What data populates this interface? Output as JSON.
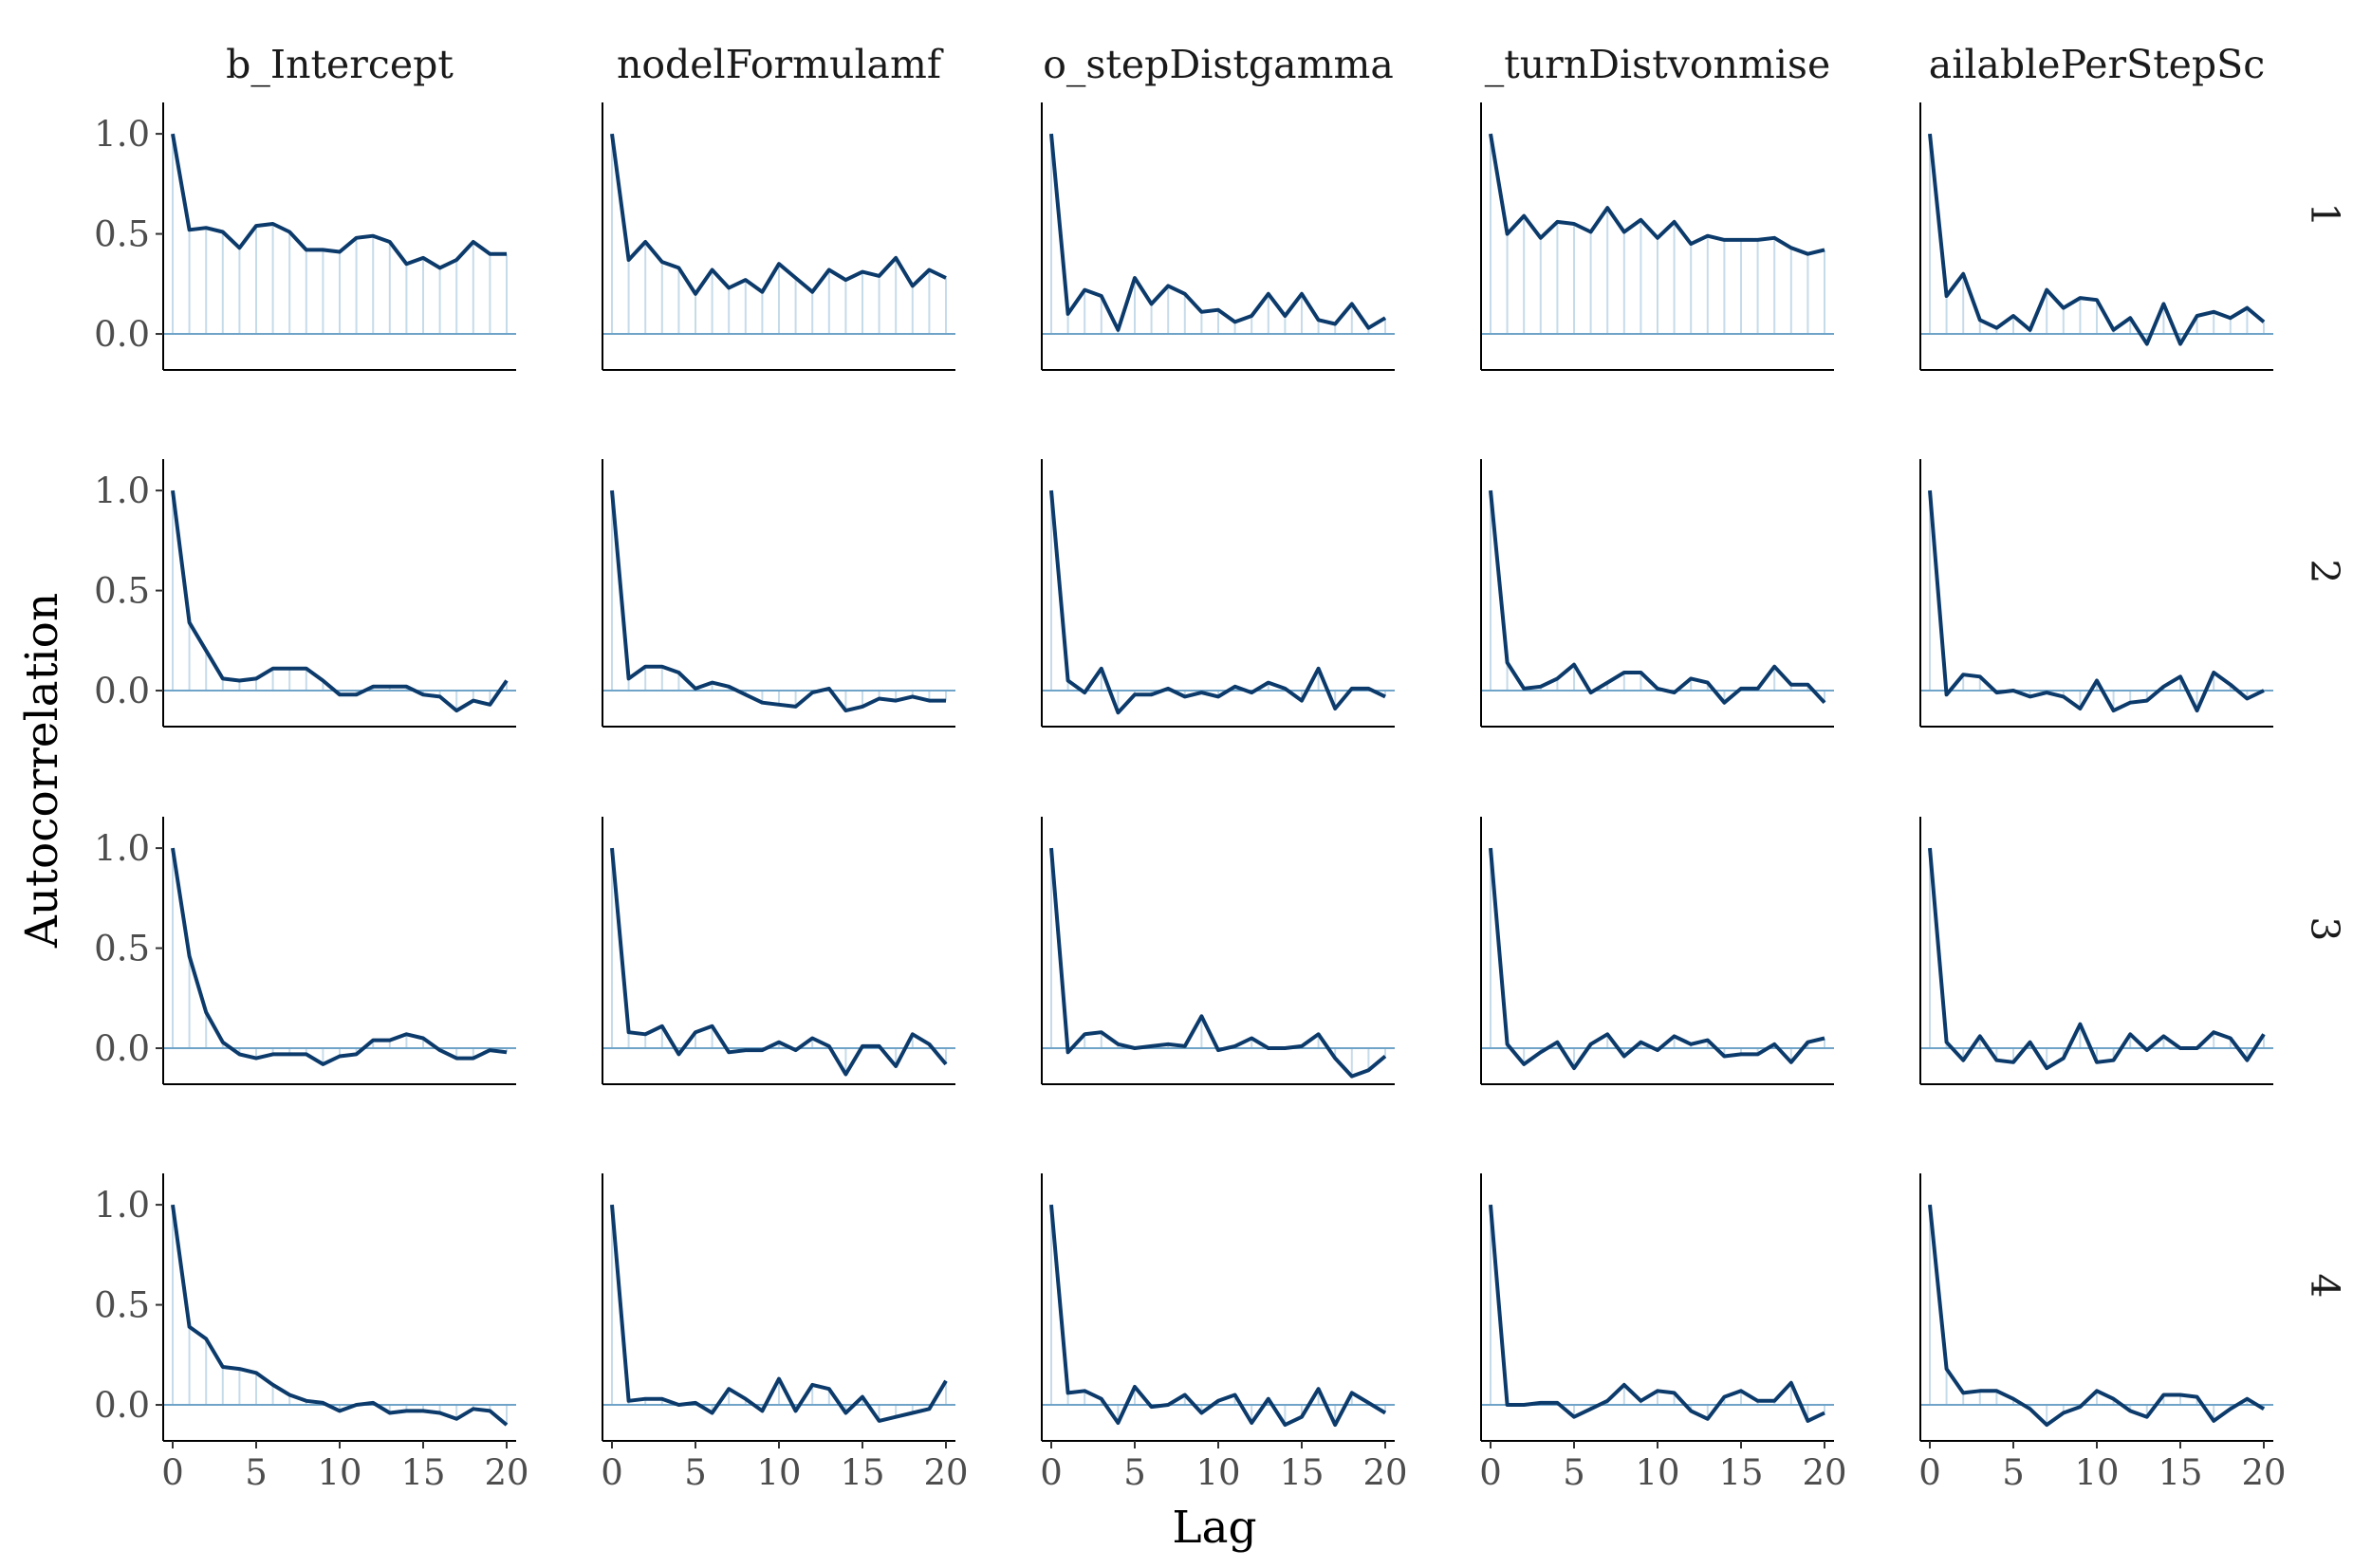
{
  "chart_data": {
    "type": "line",
    "xlabel": "Lag",
    "ylabel": "Autocorrelation",
    "column_labels": [
      "b_Intercept",
      "nodelFormulamf",
      "o_stepDistgamma",
      "_turnDistvonmise",
      "ailablePerStepSc"
    ],
    "row_labels": [
      "1",
      "2",
      "3",
      "4"
    ],
    "xlim": [
      0,
      20
    ],
    "ylim": [
      -0.18,
      1.1
    ],
    "x_ticks": [
      0,
      5,
      10,
      15,
      20
    ],
    "y_ticks": [
      0.0,
      0.5,
      1.0
    ],
    "y_tick_labels": [
      "0.0",
      "0.5",
      "1.0"
    ],
    "x": [
      0,
      1,
      2,
      3,
      4,
      5,
      6,
      7,
      8,
      9,
      10,
      11,
      12,
      13,
      14,
      15,
      16,
      17,
      18,
      19,
      20
    ],
    "colors": {
      "line": "#0b3a6b",
      "zero_line": "#6fa3c7",
      "stems": "#c6dbea",
      "axis": "#000000"
    },
    "panels": [
      [
        [
          1.0,
          0.52,
          0.53,
          0.51,
          0.43,
          0.54,
          0.55,
          0.51,
          0.42,
          0.42,
          0.41,
          0.48,
          0.49,
          0.46,
          0.35,
          0.38,
          0.33,
          0.37,
          0.46,
          0.4,
          0.4
        ],
        [
          1.0,
          0.37,
          0.46,
          0.36,
          0.33,
          0.2,
          0.32,
          0.23,
          0.27,
          0.21,
          0.35,
          0.28,
          0.21,
          0.32,
          0.27,
          0.31,
          0.29,
          0.38,
          0.24,
          0.32,
          0.28
        ],
        [
          1.0,
          0.1,
          0.22,
          0.19,
          0.02,
          0.28,
          0.15,
          0.24,
          0.2,
          0.11,
          0.12,
          0.06,
          0.09,
          0.2,
          0.09,
          0.2,
          0.07,
          0.05,
          0.15,
          0.03,
          0.08
        ],
        [
          1.0,
          0.5,
          0.59,
          0.48,
          0.56,
          0.55,
          0.51,
          0.63,
          0.51,
          0.57,
          0.48,
          0.56,
          0.45,
          0.49,
          0.47,
          0.47,
          0.47,
          0.48,
          0.43,
          0.4,
          0.42
        ],
        [
          1.0,
          0.19,
          0.3,
          0.07,
          0.03,
          0.09,
          0.02,
          0.22,
          0.13,
          0.18,
          0.17,
          0.02,
          0.08,
          -0.05,
          0.15,
          -0.05,
          0.09,
          0.11,
          0.08,
          0.13,
          0.06
        ]
      ],
      [
        [
          1.0,
          0.34,
          0.2,
          0.06,
          0.05,
          0.06,
          0.11,
          0.11,
          0.11,
          0.05,
          -0.02,
          -0.02,
          0.02,
          0.02,
          0.02,
          -0.02,
          -0.03,
          -0.1,
          -0.05,
          -0.07,
          0.05
        ],
        [
          1.0,
          0.06,
          0.12,
          0.12,
          0.09,
          0.01,
          0.04,
          0.02,
          -0.02,
          -0.06,
          -0.07,
          -0.08,
          -0.01,
          0.01,
          -0.1,
          -0.08,
          -0.04,
          -0.05,
          -0.03,
          -0.05,
          -0.05
        ],
        [
          1.0,
          0.05,
          -0.01,
          0.11,
          -0.11,
          -0.02,
          -0.02,
          0.01,
          -0.03,
          -0.01,
          -0.03,
          0.02,
          -0.01,
          0.04,
          0.01,
          -0.05,
          0.11,
          -0.09,
          0.01,
          0.01,
          -0.03
        ],
        [
          1.0,
          0.14,
          0.01,
          0.02,
          0.06,
          0.13,
          -0.01,
          0.04,
          0.09,
          0.09,
          0.01,
          -0.01,
          0.06,
          0.04,
          -0.06,
          0.01,
          0.01,
          0.12,
          0.03,
          0.03,
          -0.06
        ],
        [
          1.0,
          -0.02,
          0.08,
          0.07,
          -0.01,
          0.0,
          -0.03,
          -0.01,
          -0.03,
          -0.09,
          0.05,
          -0.1,
          -0.06,
          -0.05,
          0.02,
          0.07,
          -0.1,
          0.09,
          0.03,
          -0.04,
          0.0
        ]
      ],
      [
        [
          1.0,
          0.46,
          0.18,
          0.03,
          -0.03,
          -0.05,
          -0.03,
          -0.03,
          -0.03,
          -0.08,
          -0.04,
          -0.03,
          0.04,
          0.04,
          0.07,
          0.05,
          -0.01,
          -0.05,
          -0.05,
          -0.01,
          -0.02
        ],
        [
          1.0,
          0.08,
          0.07,
          0.11,
          -0.03,
          0.08,
          0.11,
          -0.02,
          -0.01,
          -0.01,
          0.03,
          -0.01,
          0.05,
          0.01,
          -0.13,
          0.01,
          0.01,
          -0.09,
          0.07,
          0.02,
          -0.08
        ],
        [
          1.0,
          -0.02,
          0.07,
          0.08,
          0.02,
          0.0,
          0.01,
          0.02,
          0.01,
          0.16,
          -0.01,
          0.01,
          0.05,
          0.0,
          0.0,
          0.01,
          0.07,
          -0.05,
          -0.14,
          -0.11,
          -0.04
        ],
        [
          1.0,
          0.02,
          -0.08,
          -0.02,
          0.03,
          -0.1,
          0.02,
          0.07,
          -0.04,
          0.03,
          -0.01,
          0.06,
          0.02,
          0.04,
          -0.04,
          -0.03,
          -0.03,
          0.02,
          -0.07,
          0.03,
          0.05
        ],
        [
          1.0,
          0.03,
          -0.06,
          0.06,
          -0.06,
          -0.07,
          0.03,
          -0.1,
          -0.05,
          0.12,
          -0.07,
          -0.06,
          0.07,
          -0.01,
          0.06,
          0.0,
          0.0,
          0.08,
          0.05,
          -0.06,
          0.07
        ]
      ],
      [
        [
          1.0,
          0.39,
          0.33,
          0.19,
          0.18,
          0.16,
          0.1,
          0.05,
          0.02,
          0.01,
          -0.03,
          0.0,
          0.01,
          -0.04,
          -0.03,
          -0.03,
          -0.04,
          -0.07,
          -0.02,
          -0.03,
          -0.1
        ],
        [
          1.0,
          0.02,
          0.03,
          0.03,
          0.0,
          0.01,
          -0.04,
          0.08,
          0.03,
          -0.03,
          0.13,
          -0.03,
          0.1,
          0.08,
          -0.04,
          0.04,
          -0.08,
          -0.06,
          -0.04,
          -0.02,
          0.12
        ],
        [
          1.0,
          0.06,
          0.07,
          0.03,
          -0.09,
          0.09,
          -0.01,
          0.0,
          0.05,
          -0.04,
          0.02,
          0.05,
          -0.09,
          0.03,
          -0.1,
          -0.06,
          0.08,
          -0.1,
          0.06,
          0.01,
          -0.04
        ],
        [
          1.0,
          0.0,
          0.0,
          0.01,
          0.01,
          -0.06,
          -0.02,
          0.02,
          0.1,
          0.02,
          0.07,
          0.06,
          -0.03,
          -0.07,
          0.04,
          0.07,
          0.02,
          0.02,
          0.11,
          -0.08,
          -0.04
        ],
        [
          1.0,
          0.18,
          0.06,
          0.07,
          0.07,
          0.03,
          -0.02,
          -0.1,
          -0.04,
          -0.01,
          0.07,
          0.03,
          -0.03,
          -0.06,
          0.05,
          0.05,
          0.04,
          -0.08,
          -0.02,
          0.03,
          -0.02
        ]
      ]
    ]
  }
}
